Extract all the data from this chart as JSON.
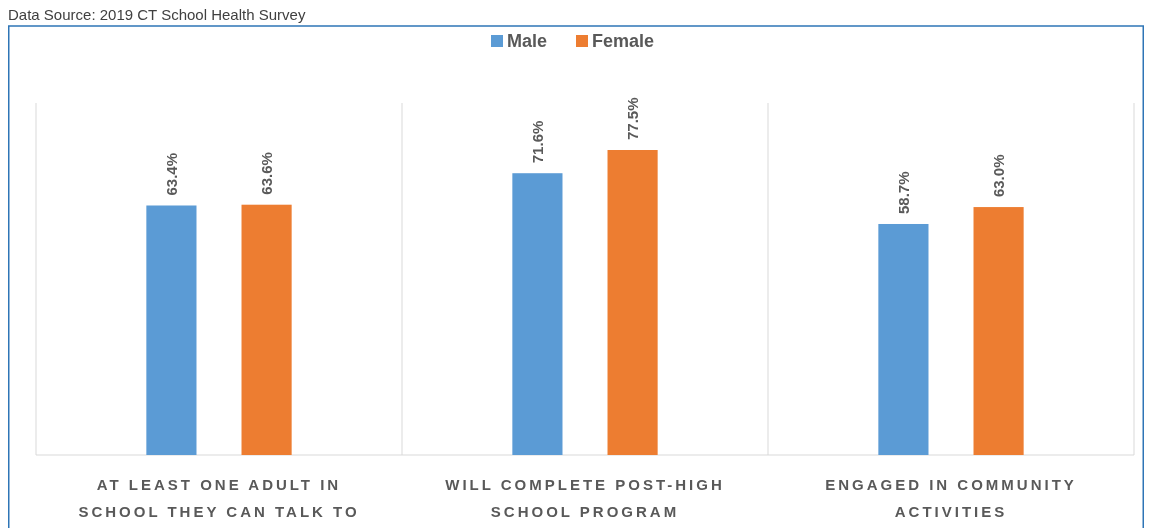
{
  "chart_data": {
    "type": "bar",
    "annotations": [
      "Data Source: 2019 CT School Health Survey"
    ],
    "categories": [
      "AT LEAST ONE ADULT IN SCHOOL THEY CAN TALK TO",
      "WILL COMPLETE POST-HIGH SCHOOL PROGRAM",
      "ENGAGED IN COMMUNITY ACTIVITIES"
    ],
    "series": [
      {
        "name": "Male",
        "color": "#5b9bd5",
        "values": [
          63.4,
          71.6,
          58.7
        ],
        "value_labels": [
          "63.4%",
          "71.6%",
          "58.7%"
        ]
      },
      {
        "name": "Female",
        "color": "#ed7d31",
        "values": [
          63.6,
          77.5,
          63.0
        ],
        "value_labels": [
          "63.6%",
          "77.5%",
          "63.0%"
        ]
      }
    ],
    "legend": "top"
  }
}
